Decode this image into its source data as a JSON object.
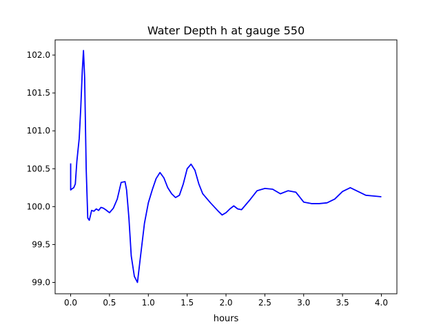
{
  "chart_data": {
    "type": "line",
    "title": "Water Depth h at gauge 550",
    "xlabel": "hours",
    "ylabel": "",
    "xlim": [
      -0.2,
      4.2
    ],
    "ylim": [
      98.85,
      102.2
    ],
    "xticks": [
      0.0,
      0.5,
      1.0,
      1.5,
      2.0,
      2.5,
      3.0,
      3.5,
      4.0
    ],
    "xtick_labels": [
      "0.0",
      "0.5",
      "1.0",
      "1.5",
      "2.0",
      "2.5",
      "3.0",
      "3.5",
      "4.0"
    ],
    "yticks": [
      99.0,
      99.5,
      100.0,
      100.5,
      101.0,
      101.5,
      102.0
    ],
    "ytick_labels": [
      "99.0",
      "99.5",
      "100.0",
      "100.5",
      "101.0",
      "101.5",
      "102.0"
    ],
    "grid": false,
    "series": [
      {
        "color": "#0000ff",
        "x": [
          0.0,
          0.0,
          0.01,
          0.04,
          0.06,
          0.08,
          0.11,
          0.13,
          0.15,
          0.165,
          0.18,
          0.2,
          0.22,
          0.24,
          0.27,
          0.3,
          0.33,
          0.36,
          0.39,
          0.42,
          0.45,
          0.5,
          0.55,
          0.6,
          0.65,
          0.7,
          0.72,
          0.75,
          0.78,
          0.82,
          0.86,
          0.9,
          0.95,
          1.0,
          1.05,
          1.1,
          1.15,
          1.2,
          1.25,
          1.3,
          1.35,
          1.4,
          1.45,
          1.5,
          1.55,
          1.6,
          1.65,
          1.7,
          1.8,
          1.9,
          1.95,
          2.0,
          2.05,
          2.1,
          2.15,
          2.2,
          2.3,
          2.4,
          2.5,
          2.6,
          2.7,
          2.8,
          2.9,
          3.0,
          3.1,
          3.2,
          3.3,
          3.4,
          3.5,
          3.6,
          3.7,
          3.8,
          3.9,
          4.0
        ],
        "y": [
          100.57,
          100.22,
          100.23,
          100.25,
          100.3,
          100.6,
          100.9,
          101.3,
          101.8,
          102.06,
          101.7,
          100.5,
          99.85,
          99.82,
          99.95,
          99.94,
          99.97,
          99.95,
          99.99,
          99.98,
          99.96,
          99.92,
          99.98,
          100.1,
          100.32,
          100.33,
          100.22,
          99.85,
          99.35,
          99.08,
          99.0,
          99.35,
          99.78,
          100.05,
          100.22,
          100.37,
          100.45,
          100.38,
          100.25,
          100.17,
          100.12,
          100.15,
          100.3,
          100.5,
          100.56,
          100.48,
          100.3,
          100.17,
          100.05,
          99.94,
          99.89,
          99.92,
          99.97,
          100.01,
          99.97,
          99.96,
          100.08,
          100.21,
          100.24,
          100.23,
          100.17,
          100.21,
          100.19,
          100.06,
          100.04,
          100.04,
          100.05,
          100.1,
          100.2,
          100.25,
          100.2,
          100.15,
          100.14,
          100.13
        ]
      }
    ]
  }
}
